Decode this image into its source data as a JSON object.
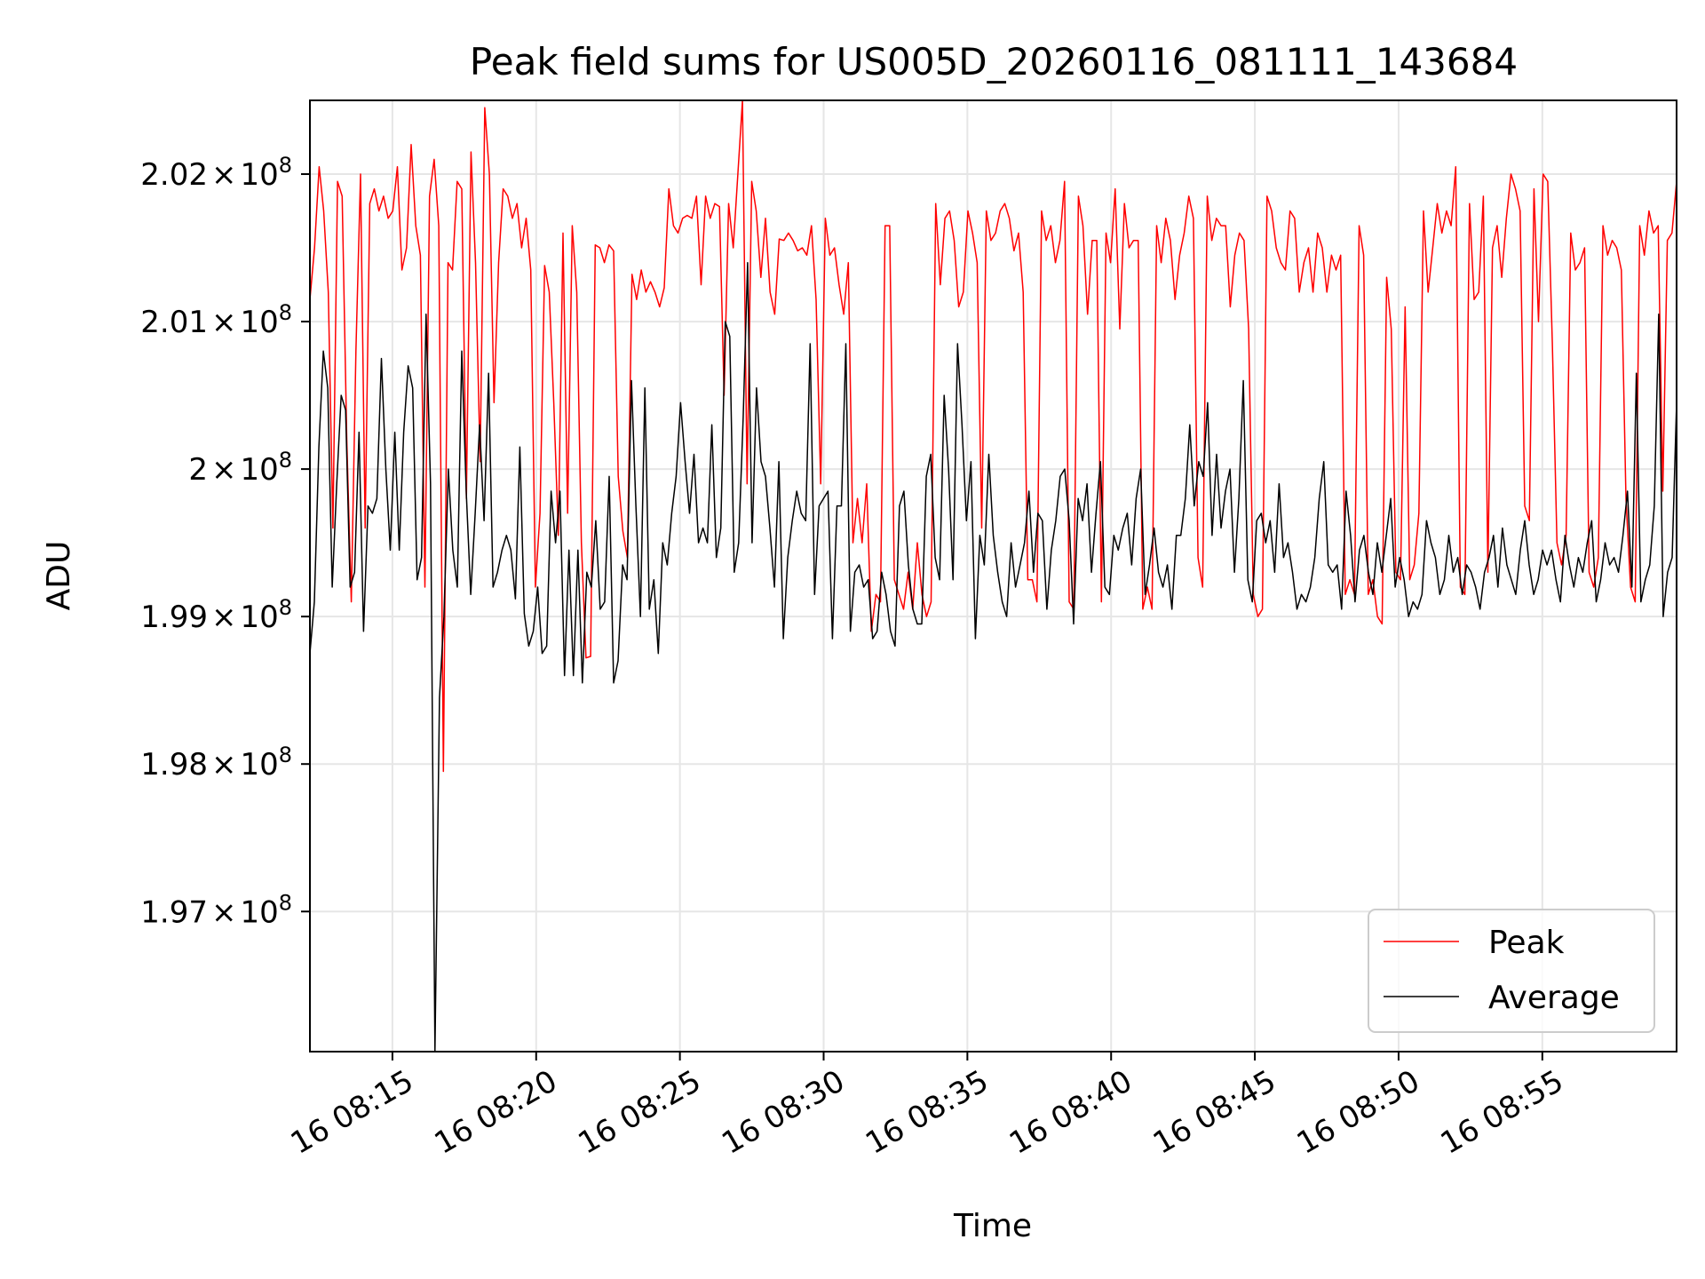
{
  "chart_data": {
    "type": "line",
    "title": "Peak field sums for US005D_20260116_081111_143684",
    "xlabel": "Time",
    "ylabel": "ADU",
    "x_unit": "minutes after 08:00 on day 16",
    "xlim": [
      12.13,
      59.67
    ],
    "ylim": [
      196050000,
      202500000
    ],
    "x_ticks": [
      {
        "value": 15,
        "label": "16 08:15"
      },
      {
        "value": 20,
        "label": "16 08:20"
      },
      {
        "value": 25,
        "label": "16 08:25"
      },
      {
        "value": 30,
        "label": "16 08:30"
      },
      {
        "value": 35,
        "label": "16 08:35"
      },
      {
        "value": 40,
        "label": "16 08:40"
      },
      {
        "value": 45,
        "label": "16 08:45"
      },
      {
        "value": 50,
        "label": "16 08:50"
      },
      {
        "value": 55,
        "label": "16 08:55"
      }
    ],
    "y_ticks": [
      {
        "value": 197000000,
        "mantissa": "1.97",
        "times": "×",
        "base": "10",
        "exp": "8"
      },
      {
        "value": 198000000,
        "mantissa": "1.98",
        "times": "×",
        "base": "10",
        "exp": "8"
      },
      {
        "value": 199000000,
        "mantissa": "1.99",
        "times": "×",
        "base": "10",
        "exp": "8"
      },
      {
        "value": 200000000,
        "mantissa": "2",
        "times": "×",
        "base": "10",
        "exp": "8"
      },
      {
        "value": 201000000,
        "mantissa": "2.01",
        "times": "×",
        "base": "10",
        "exp": "8"
      },
      {
        "value": 202000000,
        "mantissa": "2.02",
        "times": "×",
        "base": "10",
        "exp": "8"
      }
    ],
    "grid": true,
    "legend_position": "lower-right",
    "x": {
      "start": 12.13,
      "end": 59.67,
      "count": 300
    },
    "series": [
      {
        "name": "Peak",
        "color": "#ff0000",
        "values": [
          201150000,
          201500000,
          202050000,
          201750000,
          201200000,
          199600000,
          201950000,
          201850000,
          200200000,
          199100000,
          200800000,
          202000000,
          199600000,
          201800000,
          201900000,
          201750000,
          201850000,
          201700000,
          201750000,
          202050000,
          201350000,
          201500000,
          202200000,
          201650000,
          201450000,
          199200000,
          201850000,
          202100000,
          201650000,
          197950000,
          201400000,
          201350000,
          201950000,
          201900000,
          199800000,
          202150000,
          201400000,
          200050000,
          202450000,
          202000000,
          200450000,
          201400000,
          201900000,
          201850000,
          201700000,
          201800000,
          201500000,
          201700000,
          201350000,
          199200000,
          199700000,
          201380000,
          201200000,
          200450000,
          199550000,
          201600000,
          199700000,
          201650000,
          201200000,
          199500000,
          198720000,
          198730000,
          201520000,
          201500000,
          201400000,
          201520000,
          201480000,
          199950000,
          199580000,
          199400000,
          201320000,
          201150000,
          201350000,
          201200000,
          201270000,
          201200000,
          201100000,
          201230000,
          201900000,
          201650000,
          201600000,
          201700000,
          201720000,
          201700000,
          201850000,
          201250000,
          201850000,
          201700000,
          201800000,
          201780000,
          200500000,
          201800000,
          201500000,
          202000000,
          202500000,
          199900000,
          201950000,
          201750000,
          201300000,
          201700000,
          201200000,
          201050000,
          201560000,
          201550000,
          201600000,
          201550000,
          201480000,
          201500000,
          201450000,
          201650000,
          201150000,
          199900000,
          201700000,
          201450000,
          201500000,
          201250000,
          201050000,
          201400000,
          199500000,
          199800000,
          199500000,
          199900000,
          198900000,
          199150000,
          199100000,
          201650000,
          201650000,
          199250000,
          199150000,
          199050000,
          199300000,
          199050000,
          199500000,
          199150000,
          199000000,
          199100000,
          201800000,
          201250000,
          201700000,
          201750000,
          201550000,
          201100000,
          201200000,
          201750000,
          201600000,
          201400000,
          199600000,
          201750000,
          201550000,
          201600000,
          201750000,
          201800000,
          201700000,
          201480000,
          201600000,
          201200000,
          199250000,
          199250000,
          199100000,
          201750000,
          201550000,
          201650000,
          201400000,
          201550000,
          201950000,
          199100000,
          199050000,
          201850000,
          201650000,
          201050000,
          201550000,
          201550000,
          199100000,
          201600000,
          201400000,
          201900000,
          200950000,
          201800000,
          201500000,
          201550000,
          201550000,
          199050000,
          199200000,
          199050000,
          201650000,
          201400000,
          201700000,
          201550000,
          201150000,
          201450000,
          201600000,
          201850000,
          201700000,
          199400000,
          199200000,
          201850000,
          201550000,
          201700000,
          201650000,
          201650000,
          201100000,
          201450000,
          201600000,
          201550000,
          200950000,
          199150000,
          199000000,
          199050000,
          201850000,
          201750000,
          201500000,
          201400000,
          201350000,
          201750000,
          201700000,
          201200000,
          201400000,
          201500000,
          201200000,
          201600000,
          201500000,
          201200000,
          201450000,
          201350000,
          201450000,
          199150000,
          199250000,
          199150000,
          201650000,
          201450000,
          199150000,
          199250000,
          199000000,
          198950000,
          201300000,
          200950000,
          199300000,
          199250000,
          201100000,
          199250000,
          199350000,
          199700000,
          201750000,
          201200000,
          201500000,
          201800000,
          201600000,
          201750000,
          201650000,
          202050000,
          199200000,
          199150000,
          201800000,
          201150000,
          201200000,
          201850000,
          199300000,
          201500000,
          201650000,
          201300000,
          201700000,
          202000000,
          201900000,
          201750000,
          199750000,
          199650000,
          201900000,
          201000000,
          202000000,
          201950000,
          200850000,
          199500000,
          199350000,
          199550000,
          201600000,
          201350000,
          201400000,
          201500000,
          199300000,
          199200000,
          199400000,
          201650000,
          201450000,
          201550000,
          201500000,
          201350000,
          199800000,
          199200000,
          199100000,
          201650000,
          201450000,
          201750000,
          201600000,
          201650000,
          199850000,
          201550000,
          201600000,
          201950000
        ]
      },
      {
        "name": "Average",
        "color": "#000000",
        "values": [
          198750000,
          199100000,
          200150000,
          200800000,
          200550000,
          199200000,
          199900000,
          200500000,
          200400000,
          199200000,
          199300000,
          200250000,
          198900000,
          199750000,
          199700000,
          199800000,
          200750000,
          200000000,
          199450000,
          200250000,
          199450000,
          200250000,
          200700000,
          200550000,
          199250000,
          199400000,
          201050000,
          199900000,
          196050000,
          198450000,
          199000000,
          200000000,
          199450000,
          199200000,
          200800000,
          199850000,
          199150000,
          199700000,
          200300000,
          199650000,
          200650000,
          199200000,
          199300000,
          199450000,
          199550000,
          199450000,
          199120000,
          200150000,
          199020000,
          198800000,
          198900000,
          199200000,
          198750000,
          198800000,
          199850000,
          199500000,
          199850000,
          198600000,
          199450000,
          198600000,
          199450000,
          198550000,
          199300000,
          199200000,
          199650000,
          199050000,
          199100000,
          199950000,
          198550000,
          198700000,
          199350000,
          199250000,
          200600000,
          199750000,
          199000000,
          200550000,
          199050000,
          199250000,
          198750000,
          199500000,
          199350000,
          199700000,
          199950000,
          200450000,
          200050000,
          199700000,
          200100000,
          199500000,
          199600000,
          199500000,
          200300000,
          199400000,
          199600000,
          201000000,
          200900000,
          199300000,
          199500000,
          200350000,
          201400000,
          199500000,
          200550000,
          200050000,
          199950000,
          199600000,
          199200000,
          200050000,
          198850000,
          199400000,
          199650000,
          199850000,
          199700000,
          199650000,
          200850000,
          199150000,
          199750000,
          199800000,
          199850000,
          198850000,
          199750000,
          199750000,
          200850000,
          198900000,
          199300000,
          199350000,
          199200000,
          199250000,
          198850000,
          198900000,
          199300000,
          199150000,
          198900000,
          198800000,
          199750000,
          199850000,
          199350000,
          199050000,
          198950000,
          198950000,
          199950000,
          200100000,
          199400000,
          199250000,
          200500000,
          200000000,
          199250000,
          200850000,
          200300000,
          199650000,
          200050000,
          198850000,
          199550000,
          199350000,
          200100000,
          199550000,
          199300000,
          199100000,
          199000000,
          199500000,
          199200000,
          199350000,
          199500000,
          199850000,
          199300000,
          199700000,
          199650000,
          199050000,
          199450000,
          199650000,
          199950000,
          200000000,
          199650000,
          198950000,
          199800000,
          199650000,
          199900000,
          199300000,
          199700000,
          200050000,
          199200000,
          199150000,
          199550000,
          199450000,
          199600000,
          199700000,
          199350000,
          199800000,
          200000000,
          199150000,
          199350000,
          199600000,
          199300000,
          199200000,
          199350000,
          199050000,
          199550000,
          199550000,
          199800000,
          200300000,
          199750000,
          200050000,
          199950000,
          200450000,
          199550000,
          200100000,
          199600000,
          199850000,
          200000000,
          199300000,
          199800000,
          200600000,
          199250000,
          199100000,
          199650000,
          199700000,
          199500000,
          199650000,
          199300000,
          199900000,
          199400000,
          199500000,
          199300000,
          199050000,
          199150000,
          199100000,
          199200000,
          199400000,
          199800000,
          200050000,
          199350000,
          199300000,
          199350000,
          199050000,
          199850000,
          199550000,
          199100000,
          199450000,
          199550000,
          199300000,
          199150000,
          199500000,
          199300000,
          199550000,
          199800000,
          199200000,
          199400000,
          199250000,
          199000000,
          199100000,
          199050000,
          199150000,
          199650000,
          199500000,
          199400000,
          199150000,
          199250000,
          199550000,
          199300000,
          199400000,
          199150000,
          199350000,
          199300000,
          199200000,
          199050000,
          199300000,
          199400000,
          199550000,
          199200000,
          199600000,
          199350000,
          199250000,
          199150000,
          199450000,
          199650000,
          199350000,
          199150000,
          199250000,
          199450000,
          199350000,
          199450000,
          199250000,
          199100000,
          199550000,
          199350000,
          199200000,
          199400000,
          199300000,
          199500000,
          199650000,
          199100000,
          199250000,
          199500000,
          199350000,
          199400000,
          199300000,
          199550000,
          199850000,
          199200000,
          200650000,
          199100000,
          199250000,
          199350000,
          199750000,
          201050000,
          199000000,
          199300000,
          199400000,
          200450000
        ]
      }
    ]
  }
}
